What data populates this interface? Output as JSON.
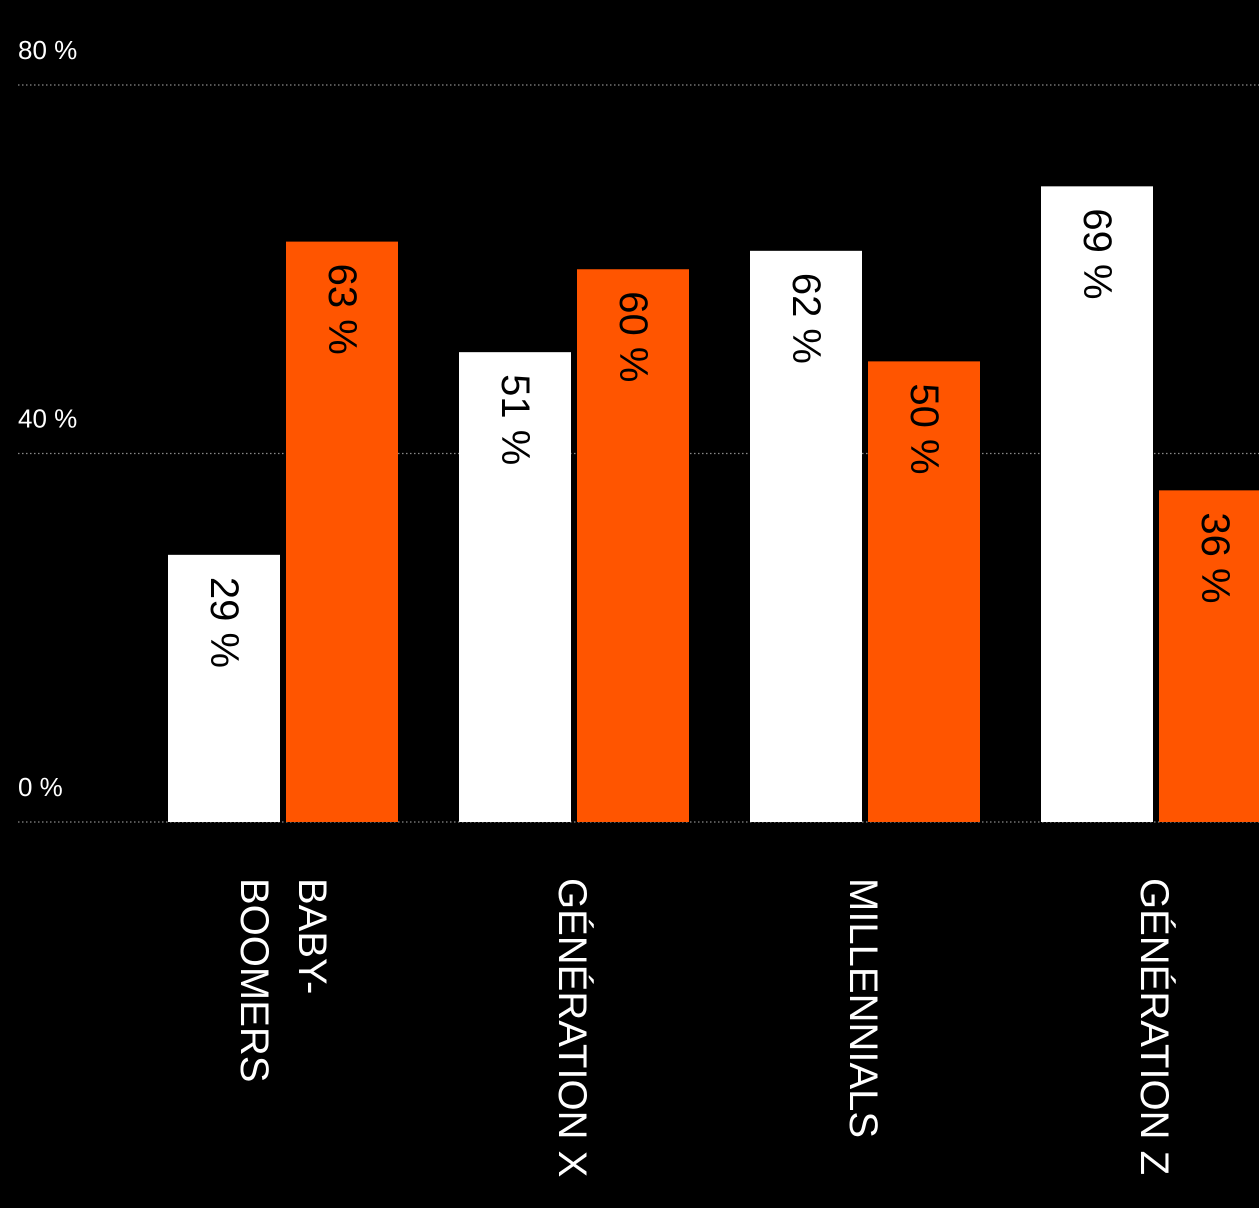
{
  "chart_data": {
    "type": "bar",
    "orientation": "vertical",
    "categories": [
      "BABY-\nBOOMERS",
      "GÉNÉRATION X",
      "MILLENNIALS",
      "GÉNÉRATION Z"
    ],
    "series": [
      {
        "values": [
          29,
          51,
          62,
          69
        ],
        "color": "#ffffff",
        "label_color": "#000000"
      },
      {
        "values": [
          63,
          60,
          50,
          36
        ],
        "color": "#ff5500",
        "label_color": "#000000"
      }
    ],
    "value_suffix": " %",
    "ylim": [
      0,
      80
    ],
    "y_ticks": [
      0,
      40,
      80
    ],
    "y_tick_labels": [
      "0 %",
      "40 %",
      "80 %"
    ],
    "grid": true,
    "grid_style": "dotted",
    "background": "#000000",
    "grid_color": "#8a8a8a",
    "text_color": "#ffffff",
    "legend": "none"
  }
}
